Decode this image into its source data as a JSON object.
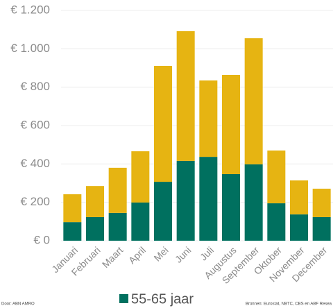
{
  "chart_data": {
    "type": "stacked_bar",
    "categories": [
      "Januari",
      "Februari",
      "Maart",
      "April",
      "Mei",
      "Juni",
      "Juli",
      "Augustus",
      "September",
      "Oktober",
      "November",
      "December"
    ],
    "series": [
      {
        "name": "55-65 jaar",
        "color": "#00705f",
        "values": [
          97,
          123,
          145,
          199,
          307,
          416,
          437,
          347,
          398,
          195,
          137,
          123
        ]
      },
      {
        "color": "#e6b412",
        "values": [
          145,
          162,
          235,
          267,
          604,
          676,
          398,
          517,
          657,
          275,
          177,
          148
        ]
      }
    ],
    "ylim": [
      0,
      1200
    ],
    "yticks": [
      {
        "value": 0,
        "label": "€ 0"
      },
      {
        "value": 200,
        "label": "€ 200"
      },
      {
        "value": 400,
        "label": "€ 400"
      },
      {
        "value": 600,
        "label": "€ 600"
      },
      {
        "value": 800,
        "label": "€ 800"
      },
      {
        "value": 1000,
        "label": "€ 1.000"
      },
      {
        "value": 1200,
        "label": "€ 1.200"
      }
    ],
    "grid": true,
    "source_left": "Door: ABN AMRO",
    "source_right": "Bronnen: Eurostat, NBTC, CBS en ABF Resea"
  }
}
